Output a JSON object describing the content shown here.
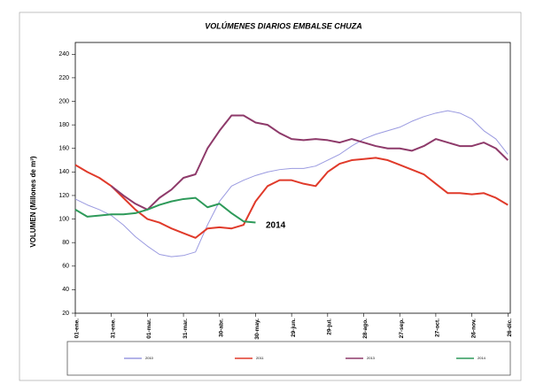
{
  "chart_data": {
    "type": "line",
    "title": "VOLÚMENES DIARIOS EMBALSE  CHUZA",
    "y_label": "VOLUMEN (Millones de m³)",
    "annotation": "2014",
    "x": [
      0,
      10,
      20,
      30,
      40,
      50,
      60,
      70,
      80,
      90,
      100,
      110,
      120,
      130,
      140,
      150,
      160,
      170,
      180,
      190,
      200,
      210,
      220,
      230,
      240,
      250,
      260,
      270,
      280,
      290,
      300,
      310,
      320,
      330,
      340,
      350,
      360
    ],
    "series": [
      {
        "name": "2010",
        "color": "#9a9ae0",
        "values": [
          117,
          112,
          108,
          103,
          95,
          85,
          77,
          70,
          68,
          69,
          72,
          95,
          115,
          128,
          133,
          137,
          140,
          142,
          143,
          143,
          145,
          150,
          155,
          162,
          168,
          172,
          175,
          178,
          183,
          187,
          190,
          192,
          190,
          185,
          175,
          168,
          155
        ]
      },
      {
        "name": "2011",
        "color": "#e03a2a",
        "values": [
          146,
          140,
          135,
          128,
          118,
          108,
          100,
          97,
          92,
          88,
          84,
          92,
          93,
          92,
          95,
          115,
          128,
          133,
          133,
          130,
          128,
          140,
          147,
          150,
          151,
          152,
          150,
          146,
          142,
          138,
          130,
          122,
          122,
          121,
          122,
          118,
          112
        ]
      },
      {
        "name": "2013",
        "color": "#8e3a6a",
        "values": [
          null,
          null,
          null,
          128,
          120,
          113,
          108,
          118,
          125,
          135,
          138,
          160,
          175,
          188,
          188,
          182,
          180,
          173,
          168,
          167,
          168,
          167,
          165,
          168,
          165,
          162,
          160,
          160,
          158,
          162,
          168,
          165,
          162,
          162,
          165,
          160,
          150
        ]
      },
      {
        "name": "2014",
        "color": "#2e9a5a",
        "values": [
          108,
          102,
          103,
          104,
          104,
          105,
          108,
          112,
          115,
          117,
          118,
          110,
          113,
          105,
          98,
          97,
          null,
          null,
          null,
          null,
          null,
          null,
          null,
          null,
          null,
          null,
          null,
          null,
          null,
          null,
          null,
          null,
          null,
          null,
          null,
          null,
          null
        ]
      }
    ],
    "xlim": [
      0,
      362
    ],
    "xticks": [
      {
        "value": 0,
        "label": "01-ene."
      },
      {
        "value": 30,
        "label": "31-ene."
      },
      {
        "value": 60,
        "label": "01-mar."
      },
      {
        "value": 90,
        "label": "31-mar."
      },
      {
        "value": 120,
        "label": "30-abr."
      },
      {
        "value": 150,
        "label": "30-may."
      },
      {
        "value": 180,
        "label": "29-jun."
      },
      {
        "value": 210,
        "label": "29-jul."
      },
      {
        "value": 240,
        "label": "28-ago."
      },
      {
        "value": 270,
        "label": "27-sep."
      },
      {
        "value": 300,
        "label": "27-oct."
      },
      {
        "value": 330,
        "label": "26-nov."
      },
      {
        "value": 360,
        "label": "26-dic."
      }
    ],
    "ylim": [
      20,
      250
    ],
    "yticks": [
      20,
      40,
      60,
      80,
      100,
      120,
      140,
      160,
      180,
      200,
      220,
      240
    ],
    "legend": "bottom"
  }
}
